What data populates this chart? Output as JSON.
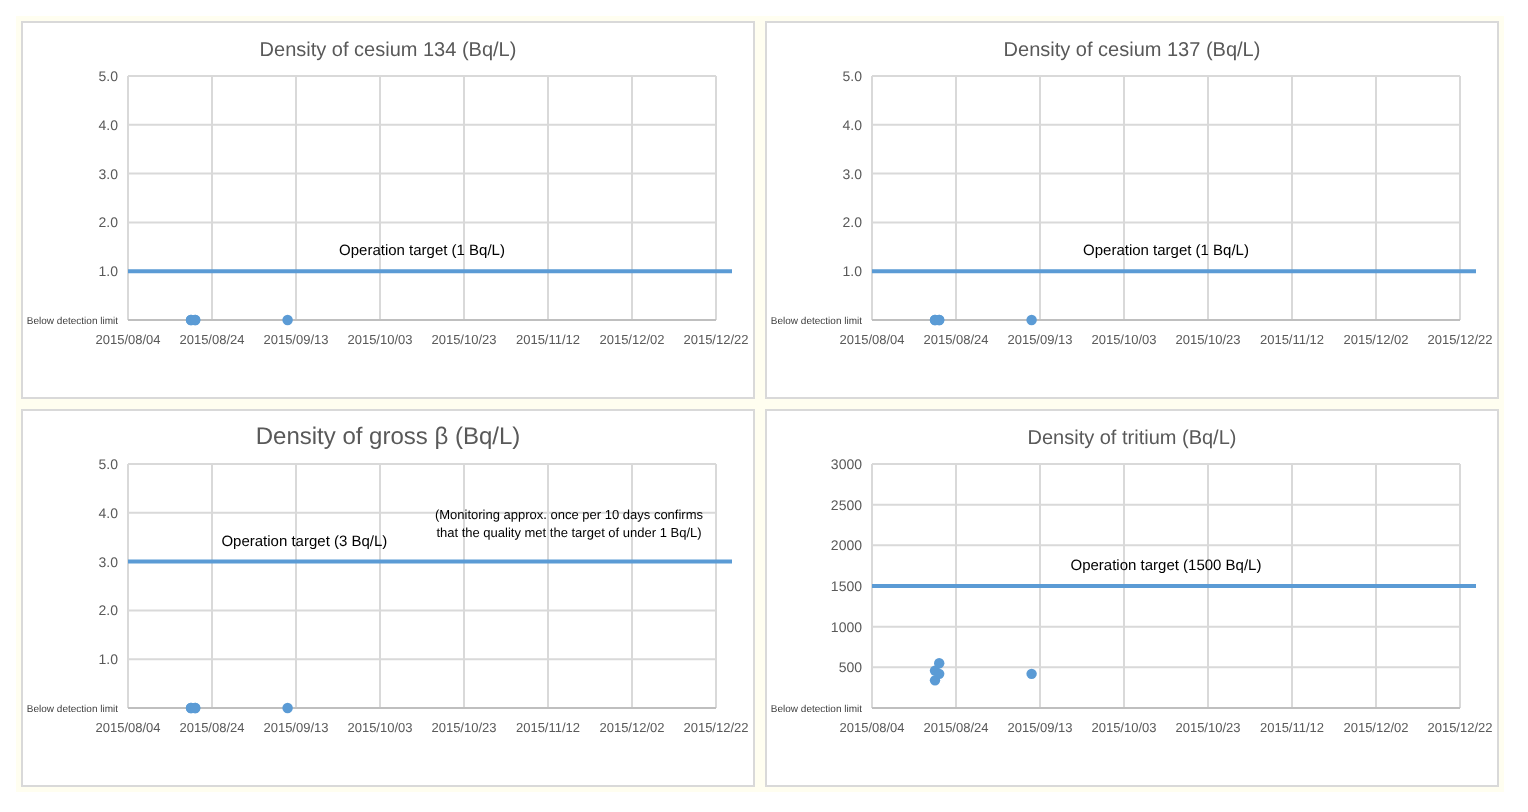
{
  "chart_data": [
    {
      "type": "scatter",
      "title": "Density of cesium 134 (Bq/L)",
      "x": [
        "2015-08-19",
        "2015-08-19",
        "2015-08-20",
        "2015-08-20",
        "2015-09-11"
      ],
      "values": [
        0,
        0,
        0,
        0,
        0
      ],
      "color": "#5b9bd5",
      "marker": "circle",
      "grid": true,
      "xlim": [
        "2015-08-04",
        "2015-12-22"
      ],
      "xticks": [
        {
          "value": "2015-08-04",
          "label": "2015/08/04"
        },
        {
          "value": "2015-08-24",
          "label": "2015/08/24"
        },
        {
          "value": "2015-09-13",
          "label": "2015/09/13"
        },
        {
          "value": "2015-10-03",
          "label": "2015/10/03"
        },
        {
          "value": "2015-10-23",
          "label": "2015/10/23"
        },
        {
          "value": "2015-11-12",
          "label": "2015/11/12"
        },
        {
          "value": "2015-12-02",
          "label": "2015/12/02"
        },
        {
          "value": "2015-12-22",
          "label": "2015/12/22"
        }
      ],
      "ylim": [
        0,
        5
      ],
      "yticks": [
        {
          "value": 0,
          "label": "Below detection limit"
        },
        {
          "value": 1,
          "label": "1.0"
        },
        {
          "value": 2,
          "label": "2.0"
        },
        {
          "value": 3,
          "label": "3.0"
        },
        {
          "value": 4,
          "label": "4.0"
        },
        {
          "value": 5,
          "label": "5.0"
        }
      ],
      "ref_lines": [
        {
          "axis": "y",
          "value": 1,
          "label": "Operation target (1 Bq/L)",
          "color": "#5b9bd5"
        }
      ]
    },
    {
      "type": "scatter",
      "title": "Density of cesium 137 (Bq/L)",
      "x": [
        "2015-08-19",
        "2015-08-19",
        "2015-08-20",
        "2015-08-20",
        "2015-09-11"
      ],
      "values": [
        0,
        0,
        0,
        0,
        0
      ],
      "color": "#5b9bd5",
      "marker": "circle",
      "grid": true,
      "xlim": [
        "2015-08-04",
        "2015-12-22"
      ],
      "xticks": [
        {
          "value": "2015-08-04",
          "label": "2015/08/04"
        },
        {
          "value": "2015-08-24",
          "label": "2015/08/24"
        },
        {
          "value": "2015-09-13",
          "label": "2015/09/13"
        },
        {
          "value": "2015-10-03",
          "label": "2015/10/03"
        },
        {
          "value": "2015-10-23",
          "label": "2015/10/23"
        },
        {
          "value": "2015-11-12",
          "label": "2015/11/12"
        },
        {
          "value": "2015-12-02",
          "label": "2015/12/02"
        },
        {
          "value": "2015-12-22",
          "label": "2015/12/22"
        }
      ],
      "ylim": [
        0,
        5
      ],
      "yticks": [
        {
          "value": 0,
          "label": "Below detection limit"
        },
        {
          "value": 1,
          "label": "1.0"
        },
        {
          "value": 2,
          "label": "2.0"
        },
        {
          "value": 3,
          "label": "3.0"
        },
        {
          "value": 4,
          "label": "4.0"
        },
        {
          "value": 5,
          "label": "5.0"
        }
      ],
      "ref_lines": [
        {
          "axis": "y",
          "value": 1,
          "label": "Operation target (1 Bq/L)",
          "color": "#5b9bd5"
        }
      ]
    },
    {
      "type": "scatter",
      "title": "Density of gross β (Bq/L)",
      "x": [
        "2015-08-19",
        "2015-08-19",
        "2015-08-20",
        "2015-08-20",
        "2015-09-11"
      ],
      "values": [
        0,
        0,
        0,
        0,
        0
      ],
      "color": "#5b9bd5",
      "marker": "circle",
      "grid": true,
      "xlim": [
        "2015-08-04",
        "2015-12-22"
      ],
      "xticks": [
        {
          "value": "2015-08-04",
          "label": "2015/08/04"
        },
        {
          "value": "2015-08-24",
          "label": "2015/08/24"
        },
        {
          "value": "2015-09-13",
          "label": "2015/09/13"
        },
        {
          "value": "2015-10-03",
          "label": "2015/10/03"
        },
        {
          "value": "2015-10-23",
          "label": "2015/10/23"
        },
        {
          "value": "2015-11-12",
          "label": "2015/11/12"
        },
        {
          "value": "2015-12-02",
          "label": "2015/12/02"
        },
        {
          "value": "2015-12-22",
          "label": "2015/12/22"
        }
      ],
      "ylim": [
        0,
        5
      ],
      "yticks": [
        {
          "value": 0,
          "label": "Below detection limit"
        },
        {
          "value": 1,
          "label": "1.0"
        },
        {
          "value": 2,
          "label": "2.0"
        },
        {
          "value": 3,
          "label": "3.0"
        },
        {
          "value": 4,
          "label": "4.0"
        },
        {
          "value": 5,
          "label": "5.0"
        }
      ],
      "ref_lines": [
        {
          "axis": "y",
          "value": 3,
          "label": "Operation target (3 Bq/L)",
          "color": "#5b9bd5"
        }
      ],
      "annotations": [
        "(Monitoring approx. once per 10 days confirms that the quality met the target of under 1 Bq/L)"
      ]
    },
    {
      "type": "scatter",
      "title": "Density of tritium  (Bq/L)",
      "x": [
        "2015-08-19",
        "2015-08-19",
        "2015-08-20",
        "2015-08-20",
        "2015-09-11"
      ],
      "values": [
        340,
        460,
        420,
        550,
        420
      ],
      "color": "#5b9bd5",
      "marker": "circle",
      "grid": true,
      "xlim": [
        "2015-08-04",
        "2015-12-22"
      ],
      "xticks": [
        {
          "value": "2015-08-04",
          "label": "2015/08/04"
        },
        {
          "value": "2015-08-24",
          "label": "2015/08/24"
        },
        {
          "value": "2015-09-13",
          "label": "2015/09/13"
        },
        {
          "value": "2015-10-03",
          "label": "2015/10/03"
        },
        {
          "value": "2015-10-23",
          "label": "2015/10/23"
        },
        {
          "value": "2015-11-12",
          "label": "2015/11/12"
        },
        {
          "value": "2015-12-02",
          "label": "2015/12/02"
        },
        {
          "value": "2015-12-22",
          "label": "2015/12/22"
        }
      ],
      "ylim": [
        0,
        3000
      ],
      "yticks": [
        {
          "value": 0,
          "label": "Below detection limit"
        },
        500,
        1000,
        1500,
        2000,
        2500,
        3000
      ],
      "ref_lines": [
        {
          "axis": "y",
          "value": 1500,
          "label": "Operation target (1500 Bq/L)",
          "color": "#5b9bd5"
        }
      ]
    }
  ]
}
